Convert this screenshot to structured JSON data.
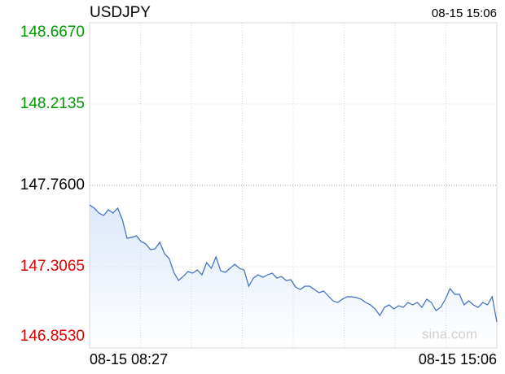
{
  "chart_data": {
    "type": "line",
    "title": "USDJPY",
    "timestamp": "08-15 15:06",
    "watermark": "sina.com",
    "categories": [
      "08-15 08:27",
      null,
      null,
      null,
      null,
      null,
      null,
      null,
      null,
      null,
      null,
      null,
      null,
      null,
      null,
      null,
      null,
      null,
      null,
      null,
      null,
      null,
      null,
      null,
      null,
      null,
      null,
      null,
      null,
      null,
      null,
      null,
      null,
      null,
      null,
      null,
      null,
      null,
      null,
      null,
      null,
      null,
      null,
      null,
      null,
      null,
      null,
      null,
      null,
      null,
      null,
      null,
      null,
      null,
      null,
      null,
      null,
      null,
      null,
      null,
      null,
      null,
      null,
      null,
      null,
      null,
      null,
      null,
      null,
      null,
      null,
      null,
      null,
      null,
      null,
      null,
      null,
      null,
      null,
      null,
      null,
      null,
      null,
      null,
      null,
      null,
      null,
      "08-15 15:06"
    ],
    "series": [
      {
        "name": "USDJPY",
        "color": "#3a6bbf",
        "values": [
          147.6512,
          147.633,
          147.6058,
          147.5922,
          147.624,
          147.6058,
          147.633,
          147.5695,
          147.4652,
          147.4698,
          147.4788,
          147.4471,
          147.4335,
          147.4017,
          147.4063,
          147.4426,
          147.3791,
          147.3519,
          147.2748,
          147.2294,
          147.2521,
          147.2793,
          147.2702,
          147.2884,
          147.2612,
          147.3292,
          147.2974,
          147.3609,
          147.2838,
          147.2748,
          147.2974,
          147.3201,
          147.2974,
          147.2884,
          147.1977,
          147.243,
          147.2612,
          147.2475,
          147.2612,
          147.2702,
          147.243,
          147.2521,
          147.2294,
          147.2339,
          147.1931,
          147.1795,
          147.1977,
          147.1977,
          147.1795,
          147.1614,
          147.1704,
          147.1432,
          147.116,
          147.107,
          147.1251,
          147.1387,
          147.1387,
          147.1342,
          147.1251,
          147.107,
          147.0934,
          147.0707,
          147.0344,
          147.0798,
          147.0934,
          147.0707,
          147.0888,
          147.0798,
          147.107,
          147.0934,
          147.107,
          147.0798,
          147.1251,
          147.107,
          147.0616,
          147.0798,
          147.1251,
          147.1841,
          147.1523,
          147.1523,
          147.0934,
          147.116,
          147.0934,
          147.0798,
          147.107,
          147.0934,
          147.1387,
          146.9981
        ]
      }
    ],
    "ylim": [
      146.853,
      148.667
    ],
    "yticks": [
      {
        "value": 148.667,
        "label": "148.6670"
      },
      {
        "value": 148.2135,
        "label": "148.2135"
      },
      {
        "value": 147.76,
        "label": "147.7600"
      },
      {
        "value": 147.3065,
        "label": "147.3065"
      },
      {
        "value": 146.853,
        "label": "146.8530"
      }
    ],
    "ytick_colors": [
      "#009900",
      "#009900",
      "#000000",
      "#e00000",
      "#e00000"
    ],
    "grid": true
  }
}
